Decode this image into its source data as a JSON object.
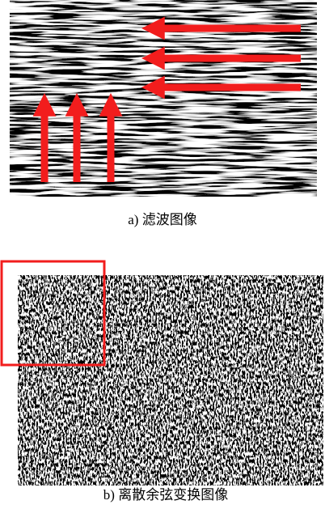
{
  "panels": [
    {
      "caption": "a) 滤波图像"
    },
    {
      "caption": "b) 离散余弦变换图像"
    }
  ]
}
